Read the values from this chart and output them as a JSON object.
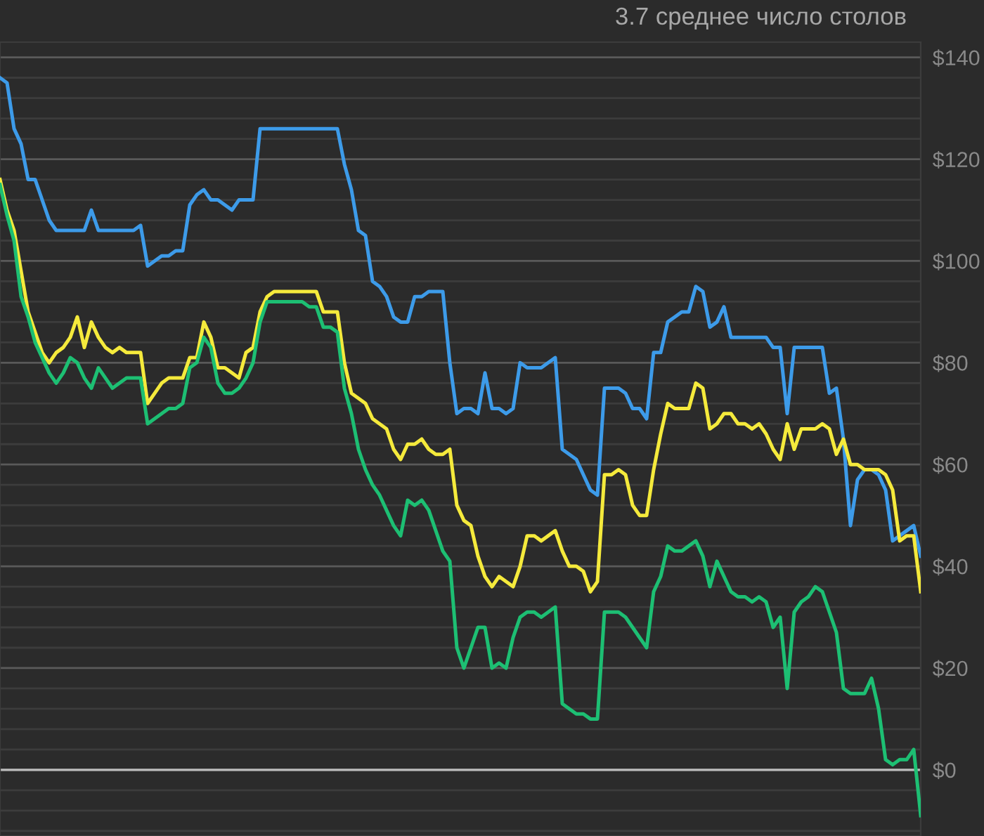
{
  "chart_data": {
    "type": "line",
    "title": "3.7 среднее число столов",
    "categories": [
      null,
      null,
      null,
      null,
      null,
      null,
      null,
      null,
      null,
      null,
      null,
      null,
      null,
      null,
      null,
      null,
      null,
      null,
      null,
      null,
      null,
      null,
      null,
      null,
      null,
      null,
      null,
      null,
      null,
      null,
      null,
      null,
      null,
      null,
      null,
      null,
      null,
      null,
      null,
      null,
      null,
      null,
      null,
      null,
      null,
      null,
      null,
      null,
      null,
      null,
      null,
      null,
      null,
      null,
      null,
      null,
      null,
      null,
      null,
      null,
      null,
      null,
      null,
      null,
      null,
      null,
      null,
      null,
      null,
      null,
      null,
      null,
      null,
      null,
      null,
      null,
      null,
      null,
      null,
      null,
      null,
      null,
      null,
      null,
      null,
      null,
      null,
      null,
      null,
      null,
      null,
      null,
      null,
      null,
      null,
      null,
      null,
      null,
      null,
      null,
      null,
      null,
      null,
      null,
      null,
      null,
      null,
      null,
      null,
      null,
      null,
      null,
      null,
      null,
      null,
      null,
      null,
      null,
      null,
      null,
      null,
      null,
      null,
      null,
      null,
      null,
      null,
      null,
      null,
      null,
      null,
      null
    ],
    "ylim": [
      -13,
      143
    ],
    "yticks": [
      {
        "value": -12,
        "label": null
      },
      {
        "value": -8,
        "label": null
      },
      {
        "value": -4,
        "label": null
      },
      {
        "value": 0,
        "label": "$0"
      },
      {
        "value": 4,
        "label": null
      },
      {
        "value": 8,
        "label": null
      },
      {
        "value": 12,
        "label": null
      },
      {
        "value": 16,
        "label": null
      },
      {
        "value": 20,
        "label": "$20"
      },
      {
        "value": 24,
        "label": null
      },
      {
        "value": 28,
        "label": null
      },
      {
        "value": 32,
        "label": null
      },
      {
        "value": 36,
        "label": null
      },
      {
        "value": 40,
        "label": "$40"
      },
      {
        "value": 44,
        "label": null
      },
      {
        "value": 48,
        "label": null
      },
      {
        "value": 52,
        "label": null
      },
      {
        "value": 56,
        "label": null
      },
      {
        "value": 60,
        "label": "$60"
      },
      {
        "value": 64,
        "label": null
      },
      {
        "value": 68,
        "label": null
      },
      {
        "value": 72,
        "label": null
      },
      {
        "value": 76,
        "label": null
      },
      {
        "value": 80,
        "label": "$80"
      },
      {
        "value": 84,
        "label": null
      },
      {
        "value": 88,
        "label": null
      },
      {
        "value": 92,
        "label": null
      },
      {
        "value": 96,
        "label": null
      },
      {
        "value": 100,
        "label": "$100"
      },
      {
        "value": 104,
        "label": null
      },
      {
        "value": 108,
        "label": null
      },
      {
        "value": 112,
        "label": null
      },
      {
        "value": 116,
        "label": null
      },
      {
        "value": 120,
        "label": "$120"
      },
      {
        "value": 124,
        "label": null
      },
      {
        "value": 128,
        "label": null
      },
      {
        "value": 132,
        "label": null
      },
      {
        "value": 136,
        "label": null
      },
      {
        "value": 140,
        "label": "$140"
      }
    ],
    "tick_labels": "y",
    "grid": "y",
    "ref_lines": [
      {
        "axis": "y",
        "value": 0,
        "color": "#bdbdbd"
      }
    ],
    "series": [
      {
        "color": "#3d9be9",
        "values": [
          136,
          135,
          126,
          123,
          116,
          116,
          112,
          108,
          106,
          106,
          106,
          106,
          106,
          110,
          106,
          106,
          106,
          106,
          106,
          106,
          107,
          99,
          100,
          101,
          101,
          102,
          102,
          111,
          113,
          114,
          112,
          112,
          111,
          110,
          112,
          112,
          112,
          126,
          126,
          126,
          126,
          126,
          126,
          126,
          126,
          126,
          126,
          126,
          126,
          119,
          114,
          106,
          105,
          96,
          95,
          93,
          89,
          88,
          88,
          93,
          93,
          94,
          94,
          94,
          80,
          70,
          71,
          71,
          70,
          78,
          71,
          71,
          70,
          71,
          80,
          79,
          79,
          79,
          80,
          81,
          63,
          62,
          61,
          58,
          55,
          54,
          75,
          75,
          75,
          74,
          71,
          71,
          69,
          82,
          82,
          88,
          89,
          90,
          90,
          95,
          94,
          87,
          88,
          91,
          85,
          85,
          85,
          85,
          85,
          85,
          83,
          83,
          70,
          83,
          83,
          83,
          83,
          83,
          74,
          75,
          65,
          48,
          57,
          59,
          59,
          58,
          55,
          45,
          46,
          47,
          48,
          42
        ]
      },
      {
        "color": "#f5ea3c",
        "values": [
          116,
          110,
          106,
          98,
          90,
          86,
          82,
          80,
          82,
          83,
          85,
          89,
          83,
          88,
          85,
          83,
          82,
          83,
          82,
          82,
          82,
          72,
          74,
          76,
          77,
          77,
          77,
          81,
          81,
          88,
          85,
          79,
          79,
          78,
          77,
          82,
          83,
          90,
          93,
          94,
          94,
          94,
          94,
          94,
          94,
          94,
          90,
          90,
          90,
          80,
          74,
          73,
          72,
          69,
          68,
          67,
          63,
          61,
          64,
          64,
          65,
          63,
          62,
          62,
          63,
          52,
          49,
          48,
          42,
          38,
          36,
          38,
          37,
          36,
          40,
          46,
          46,
          45,
          46,
          47,
          43,
          40,
          40,
          39,
          35,
          37,
          58,
          58,
          59,
          58,
          52,
          50,
          50,
          59,
          66,
          72,
          71,
          71,
          71,
          76,
          75,
          67,
          68,
          70,
          70,
          68,
          68,
          67,
          68,
          66,
          63,
          61,
          68,
          63,
          67,
          67,
          67,
          68,
          67,
          62,
          65,
          60,
          60,
          59,
          59,
          59,
          58,
          55,
          45,
          46,
          46,
          35
        ]
      },
      {
        "color": "#1dbf73",
        "values": [
          115,
          109,
          104,
          93,
          89,
          84,
          81,
          78,
          76,
          78,
          81,
          80,
          77,
          75,
          79,
          77,
          75,
          76,
          77,
          77,
          77,
          68,
          69,
          70,
          71,
          71,
          72,
          79,
          80,
          85,
          83,
          76,
          74,
          74,
          75,
          77,
          80,
          88,
          92,
          92,
          92,
          92,
          92,
          92,
          91,
          91,
          87,
          87,
          86,
          75,
          70,
          63,
          59,
          56,
          54,
          51,
          48,
          46,
          53,
          52,
          53,
          51,
          47,
          43,
          41,
          24,
          20,
          24,
          28,
          28,
          20,
          21,
          20,
          26,
          30,
          31,
          31,
          30,
          31,
          32,
          13,
          12,
          11,
          11,
          10,
          10,
          31,
          31,
          31,
          30,
          28,
          26,
          24,
          35,
          38,
          44,
          43,
          43,
          44,
          45,
          42,
          36,
          41,
          38,
          35,
          34,
          34,
          33,
          34,
          33,
          28,
          30,
          16,
          31,
          33,
          34,
          36,
          35,
          31,
          27,
          16,
          15,
          15,
          15,
          18,
          12,
          2,
          1,
          2,
          2,
          4,
          -9
        ]
      }
    ]
  }
}
